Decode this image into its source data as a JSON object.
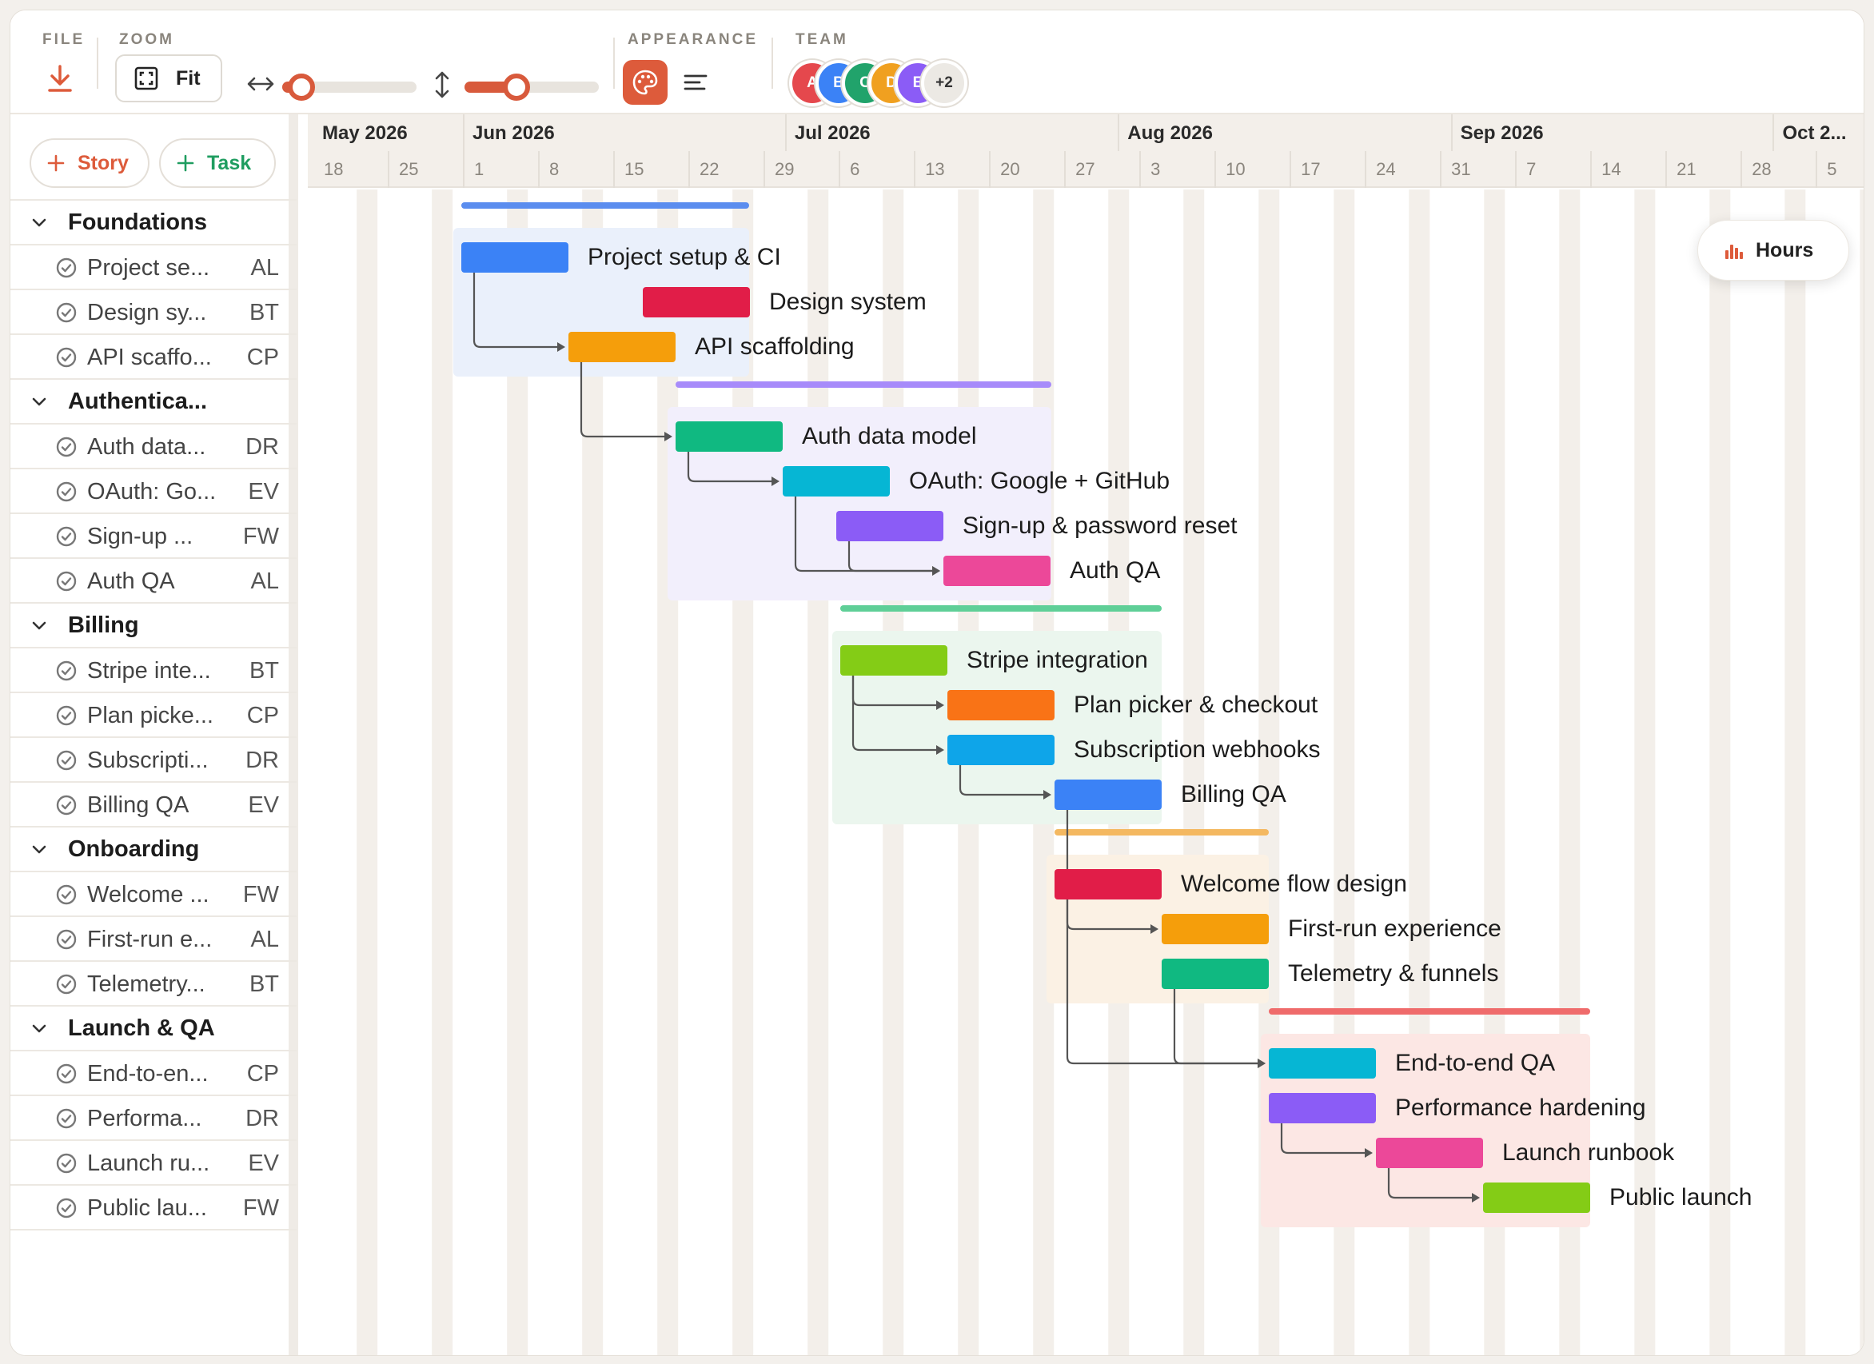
{
  "toolbar": {
    "file_label": "FILE",
    "zoom_label": "ZOOM",
    "fit_label": "Fit",
    "appearance_label": "APPEARANCE",
    "team_label": "TEAM",
    "hzoom_level": 0.05,
    "vzoom_level": 0.36,
    "team": [
      {
        "initial": "A",
        "color": "#e5484d"
      },
      {
        "initial": "B",
        "color": "#3b82f6"
      },
      {
        "initial": "C",
        "color": "#21a36b"
      },
      {
        "initial": "D",
        "color": "#f0a020"
      },
      {
        "initial": "E",
        "color": "#8b5cf6"
      }
    ],
    "team_more": "+2",
    "accent": "#dd5b3b"
  },
  "sidebar": {
    "add_story": "Story",
    "add_task": "Task",
    "groups": [
      {
        "name": "Foundations",
        "tasks": [
          {
            "name": "Project se...",
            "who": "AL"
          },
          {
            "name": "Design sy...",
            "who": "BT"
          },
          {
            "name": "API scaffo...",
            "who": "CP"
          }
        ]
      },
      {
        "name": "Authentica...",
        "tasks": [
          {
            "name": "Auth data...",
            "who": "DR"
          },
          {
            "name": "OAuth: Go...",
            "who": "EV"
          },
          {
            "name": "Sign-up ...",
            "who": "FW"
          },
          {
            "name": "Auth QA",
            "who": "AL"
          }
        ]
      },
      {
        "name": "Billing",
        "tasks": [
          {
            "name": "Stripe inte...",
            "who": "BT"
          },
          {
            "name": "Plan picke...",
            "who": "CP"
          },
          {
            "name": "Subscripti...",
            "who": "DR"
          },
          {
            "name": "Billing QA",
            "who": "EV"
          }
        ]
      },
      {
        "name": "Onboarding",
        "tasks": [
          {
            "name": "Welcome ...",
            "who": "FW"
          },
          {
            "name": "First-run e...",
            "who": "AL"
          },
          {
            "name": "Telemetry...",
            "who": "BT"
          }
        ]
      },
      {
        "name": "Launch & QA",
        "tasks": [
          {
            "name": "End-to-en...",
            "who": "CP"
          },
          {
            "name": "Performa...",
            "who": "DR"
          },
          {
            "name": "Launch ru...",
            "who": "EV"
          },
          {
            "name": "Public lau...",
            "who": "FW"
          }
        ]
      }
    ]
  },
  "timeline": {
    "months": [
      "May 2026",
      "Jun 2026",
      "Jul 2026",
      "Aug 2026",
      "Sep 2026",
      "Oct 2..."
    ],
    "days": [
      "18",
      "25",
      "1",
      "8",
      "15",
      "22",
      "29",
      "6",
      "13",
      "20",
      "27",
      "3",
      "10",
      "17",
      "24",
      "31",
      "7",
      "14",
      "21",
      "28",
      "5"
    ],
    "hours_label": "Hours",
    "stories": [
      {
        "name": "Foundations",
        "color": "#5b8def",
        "bg": "#eaf0fb",
        "tasks": [
          {
            "name": "Project setup & CI",
            "color": "#3b82f6"
          },
          {
            "name": "Design system",
            "color": "#e11d48"
          },
          {
            "name": "API scaffolding",
            "color": "#f59e0b"
          }
        ]
      },
      {
        "name": "Authentication",
        "color": "#a78bfa",
        "bg": "#f2effc",
        "tasks": [
          {
            "name": "Auth data model",
            "color": "#10b981"
          },
          {
            "name": "OAuth: Google + GitHub",
            "color": "#06b6d4"
          },
          {
            "name": "Sign-up & password reset",
            "color": "#8b5cf6"
          },
          {
            "name": "Auth QA",
            "color": "#ec4899"
          }
        ]
      },
      {
        "name": "Billing",
        "color": "#5fcf97",
        "bg": "#ebf6ee",
        "tasks": [
          {
            "name": "Stripe integration",
            "color": "#84cc16"
          },
          {
            "name": "Plan picker & checkout",
            "color": "#f97316"
          },
          {
            "name": "Subscription webhooks",
            "color": "#0ea5e9"
          },
          {
            "name": "Billing QA",
            "color": "#3b82f6"
          }
        ]
      },
      {
        "name": "Onboarding",
        "color": "#f4b860",
        "bg": "#fbf1e4",
        "tasks": [
          {
            "name": "Welcome flow design",
            "color": "#e11d48"
          },
          {
            "name": "First-run experience",
            "color": "#f59e0b"
          },
          {
            "name": "Telemetry & funnels",
            "color": "#10b981"
          }
        ]
      },
      {
        "name": "Launch & QA",
        "color": "#ef6b6b",
        "bg": "#fce7e4",
        "tasks": [
          {
            "name": "End-to-end QA",
            "color": "#06b6d4"
          },
          {
            "name": "Performance hardening",
            "color": "#8b5cf6"
          },
          {
            "name": "Launch runbook",
            "color": "#ec4899"
          },
          {
            "name": "Public launch",
            "color": "#84cc16"
          }
        ]
      }
    ]
  }
}
